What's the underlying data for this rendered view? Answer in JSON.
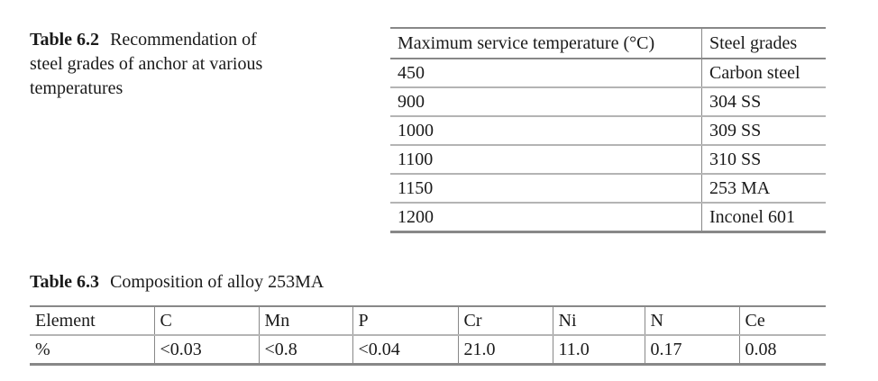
{
  "table_6_2": {
    "label": "Table 6.2",
    "caption": "Recommendation of steel grades of anchor at various temperatures",
    "headers": [
      "Maximum service temperature (°C)",
      "Steel grades"
    ],
    "rows": [
      [
        "450",
        "Carbon steel"
      ],
      [
        "900",
        "304 SS"
      ],
      [
        "1000",
        "309 SS"
      ],
      [
        "1100",
        "310 SS"
      ],
      [
        "1150",
        "253 MA"
      ],
      [
        "1200",
        "Inconel 601"
      ]
    ]
  },
  "table_6_3": {
    "label": "Table 6.3",
    "caption": "Composition of alloy 253MA",
    "headers": [
      "Element",
      "C",
      "Mn",
      "P",
      "Cr",
      "Ni",
      "N",
      "Ce"
    ],
    "rows": [
      [
        "%",
        "<0.03",
        "<0.8",
        "<0.04",
        "21.0",
        "11.0",
        "0.17",
        "0.08"
      ]
    ]
  }
}
